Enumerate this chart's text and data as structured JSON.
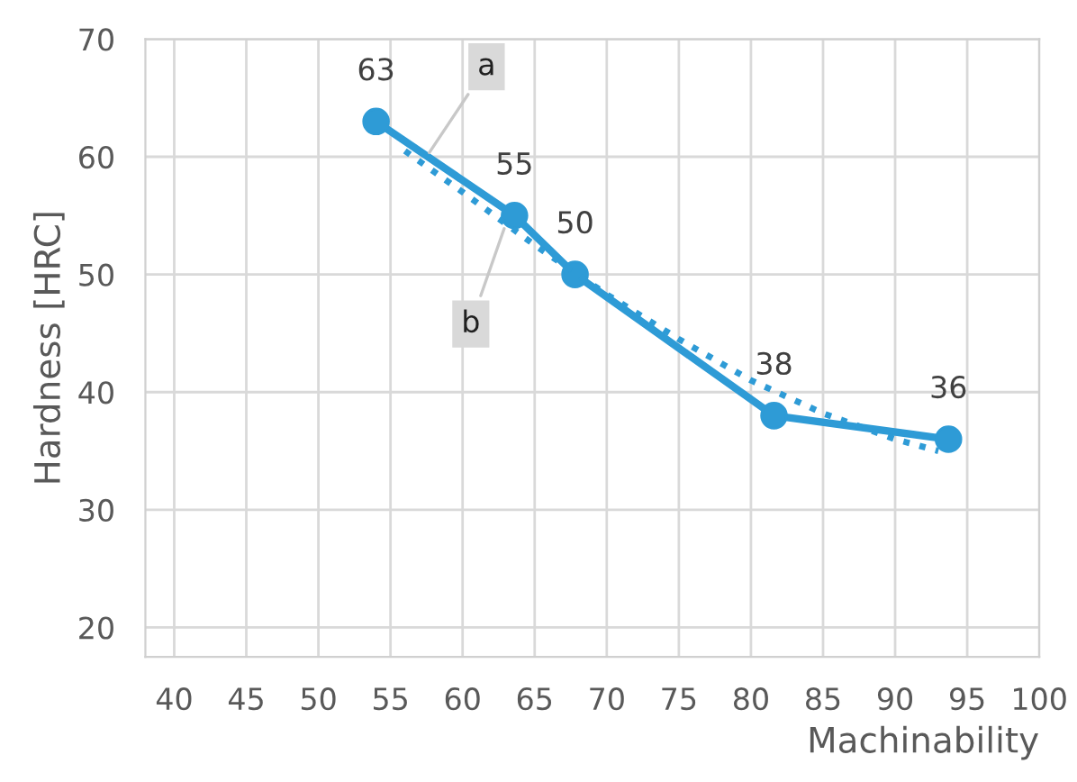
{
  "chart_data": {
    "type": "line",
    "xlabel": "Machinability",
    "ylabel": "Hardness [HRC]",
    "xlim": [
      38,
      100
    ],
    "xticks": [
      40,
      45,
      50,
      55,
      60,
      65,
      70,
      75,
      80,
      85,
      90,
      95,
      100
    ],
    "ylim": [
      17.5,
      70
    ],
    "yticks": [
      20,
      30,
      40,
      50,
      60,
      70
    ],
    "grid": true,
    "legend": false,
    "series": [
      {
        "color": "#2e9bd6",
        "marker": "circle",
        "line_style": "solid",
        "data_labels": true,
        "x": [
          54,
          63.6,
          67.8,
          81.6,
          93.7
        ],
        "values": [
          63,
          55,
          50,
          38,
          36
        ]
      },
      {
        "type": "line",
        "color": "#2e9bd6",
        "marker": "none",
        "line_style": "dotted",
        "x": [
          56,
          60,
          65,
          70,
          75,
          80,
          85,
          90,
          93
        ],
        "values": [
          60.5,
          57,
          52.5,
          48.3,
          44.5,
          41,
          38.2,
          36,
          35
        ]
      }
    ],
    "annotations": [
      {
        "text": "a",
        "x": 57.5,
        "y": 60
      },
      {
        "text": "b",
        "x": 63,
        "y": 54.3
      }
    ]
  }
}
